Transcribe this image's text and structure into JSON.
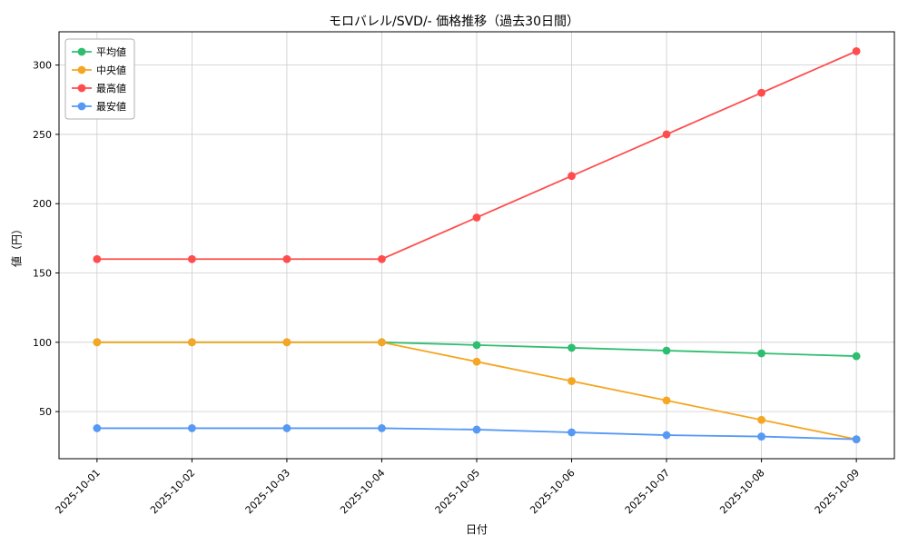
{
  "chart_data": {
    "type": "line",
    "title": "モロバレル/SVD/- 価格推移（過去30日間）",
    "xlabel": "日付",
    "ylabel": "値（円）",
    "categories": [
      "2025-10-01",
      "2025-10-02",
      "2025-10-03",
      "2025-10-04",
      "2025-10-05",
      "2025-10-06",
      "2025-10-07",
      "2025-10-08",
      "2025-10-09"
    ],
    "series": [
      {
        "key": "average",
        "name": "平均値",
        "color": "#2fbe70",
        "values": [
          100,
          100,
          100,
          100,
          98,
          96,
          94,
          92,
          90
        ]
      },
      {
        "key": "median",
        "name": "中央値",
        "color": "#f5a623",
        "values": [
          100,
          100,
          100,
          100,
          86,
          72,
          58,
          44,
          30
        ]
      },
      {
        "key": "max",
        "name": "最高値",
        "color": "#ff4d4d",
        "values": [
          160,
          160,
          160,
          160,
          190,
          220,
          250,
          280,
          310
        ]
      },
      {
        "key": "min",
        "name": "最安値",
        "color": "#5599f5",
        "values": [
          38,
          38,
          38,
          38,
          37,
          35,
          33,
          32,
          30
        ]
      }
    ],
    "ylim": [
      16,
      324
    ],
    "yticks": [
      50,
      100,
      150,
      200,
      250,
      300
    ],
    "grid": true,
    "grid_color": "#cccccc",
    "legend_position": "upper left",
    "background": "#ffffff"
  }
}
